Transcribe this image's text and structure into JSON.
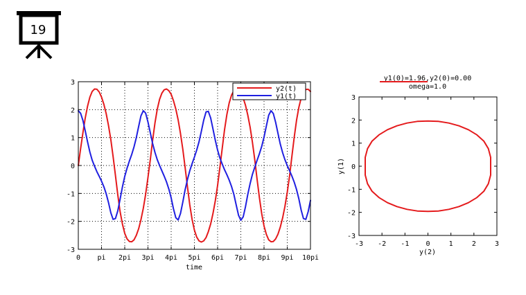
{
  "slide": {
    "number": "19",
    "icon": "presentation-board-icon"
  },
  "chart_data": [
    {
      "type": "line",
      "xlabel": "time",
      "ylabel": "",
      "xlim": [
        0,
        31.4159
      ],
      "ylim": [
        -3,
        3
      ],
      "x_ticks": [
        {
          "value": 0,
          "label": "0"
        },
        {
          "value": 3.14159,
          "label": "pi"
        },
        {
          "value": 6.28319,
          "label": "2pi"
        },
        {
          "value": 9.42478,
          "label": "3pi"
        },
        {
          "value": 12.56637,
          "label": "4pi"
        },
        {
          "value": 15.70796,
          "label": "5pi"
        },
        {
          "value": 18.84956,
          "label": "6pi"
        },
        {
          "value": 21.99115,
          "label": "7pi"
        },
        {
          "value": 25.13274,
          "label": "8pi"
        },
        {
          "value": 28.27433,
          "label": "9pi"
        },
        {
          "value": 31.41593,
          "label": "10pi"
        }
      ],
      "y_ticks": [
        -3,
        -2,
        -1,
        0,
        1,
        2,
        3
      ],
      "grid": true,
      "legend_position": "top-right",
      "series": [
        {
          "name": "y2(t)",
          "color": "#e41a1c",
          "x": [
            0.0,
            0.31,
            0.63,
            0.94,
            1.26,
            1.57,
            1.88,
            2.2,
            2.51,
            2.83,
            3.14,
            3.46,
            3.77,
            4.08,
            4.4,
            4.71,
            5.03,
            5.34,
            5.65,
            5.97,
            6.28,
            6.6,
            6.91,
            7.23,
            7.54,
            7.85,
            8.17,
            8.48,
            8.8,
            9.11,
            9.42,
            9.74,
            10.05,
            10.37,
            10.68,
            11.0,
            11.31,
            11.62,
            11.94,
            12.25,
            12.57,
            12.88,
            13.19,
            13.51,
            13.82,
            14.14,
            14.45,
            14.77,
            15.08,
            15.39,
            15.71,
            16.02,
            16.34,
            16.65,
            16.96,
            17.28,
            17.59,
            17.91,
            18.22,
            18.54,
            18.85,
            19.16,
            19.48,
            19.79,
            20.11,
            20.42,
            20.73,
            21.05,
            21.36,
            21.68,
            21.99,
            22.31,
            22.62,
            22.93,
            23.25,
            23.56,
            23.88,
            24.19,
            24.5,
            24.82,
            25.13,
            25.45,
            25.76,
            26.08,
            26.39,
            26.7,
            27.02,
            27.33,
            27.65,
            27.96,
            28.27,
            28.59,
            28.9,
            29.22,
            29.53,
            29.85,
            30.16,
            30.47,
            30.79,
            31.1,
            31.42
          ],
          "y": [
            0.0,
            0.6,
            1.18,
            1.7,
            2.13,
            2.45,
            2.65,
            2.74,
            2.73,
            2.63,
            2.45,
            2.19,
            1.86,
            1.44,
            0.93,
            0.32,
            -0.36,
            -1.04,
            -1.64,
            -2.1,
            -2.43,
            -2.63,
            -2.72,
            -2.73,
            -2.66,
            -2.5,
            -2.26,
            -1.94,
            -1.53,
            -1.04,
            -0.45,
            0.21,
            0.9,
            1.52,
            2.01,
            2.37,
            2.59,
            2.71,
            2.74,
            2.68,
            2.55,
            2.32,
            2.02,
            1.63,
            1.15,
            0.58,
            -0.07,
            -0.76,
            -1.4,
            -1.92,
            -2.31,
            -2.56,
            -2.7,
            -2.74,
            -2.7,
            -2.58,
            -2.37,
            -2.09,
            -1.72,
            -1.26,
            -0.71,
            -0.07,
            0.62,
            1.28,
            1.83,
            2.24,
            2.52,
            2.68,
            2.74,
            2.71,
            2.61,
            2.42,
            2.16,
            1.81,
            1.37,
            0.84,
            0.21,
            -0.48,
            -1.15,
            -1.73,
            -2.17,
            -2.47,
            -2.66,
            -2.73,
            -2.72,
            -2.63,
            -2.46,
            -2.21,
            -1.88,
            -1.47,
            -0.96,
            -0.36,
            0.33,
            1.02,
            1.62,
            2.09,
            2.42,
            2.63,
            2.72,
            2.73,
            2.65
          ]
        },
        {
          "name": "y1(t)",
          "color": "#1f1fe0",
          "x": [
            0.0,
            0.31,
            0.63,
            0.94,
            1.26,
            1.57,
            1.88,
            2.2,
            2.51,
            2.83,
            3.14,
            3.46,
            3.77,
            4.08,
            4.4,
            4.71,
            5.03,
            5.34,
            5.65,
            5.97,
            6.28,
            6.6,
            6.91,
            7.23,
            7.54,
            7.85,
            8.17,
            8.48,
            8.8,
            9.11,
            9.42,
            9.74,
            10.05,
            10.37,
            10.68,
            11.0,
            11.31,
            11.62,
            11.94,
            12.25,
            12.57,
            12.88,
            13.19,
            13.51,
            13.82,
            14.14,
            14.45,
            14.77,
            15.08,
            15.39,
            15.71,
            16.02,
            16.34,
            16.65,
            16.96,
            17.28,
            17.59,
            17.91,
            18.22,
            18.54,
            18.85,
            19.16,
            19.48,
            19.79,
            20.11,
            20.42,
            20.73,
            21.05,
            21.36,
            21.68,
            21.99,
            22.31,
            22.62,
            22.93,
            23.25,
            23.56,
            23.88,
            24.19,
            24.5,
            24.82,
            25.13,
            25.45,
            25.76,
            26.08,
            26.39,
            26.7,
            27.02,
            27.33,
            27.65,
            27.96,
            28.27,
            28.59,
            28.9,
            29.22,
            29.53,
            29.85,
            30.16,
            30.47,
            30.79,
            31.1,
            31.42
          ],
          "y": [
            1.96,
            1.87,
            1.61,
            1.24,
            0.84,
            0.48,
            0.19,
            -0.03,
            -0.22,
            -0.39,
            -0.56,
            -0.76,
            -1.01,
            -1.32,
            -1.69,
            -1.93,
            -1.9,
            -1.63,
            -1.22,
            -0.76,
            -0.39,
            -0.09,
            0.16,
            0.4,
            0.67,
            1.0,
            1.4,
            1.78,
            1.96,
            1.88,
            1.57,
            1.17,
            0.79,
            0.47,
            0.21,
            0.0,
            -0.19,
            -0.38,
            -0.59,
            -0.84,
            -1.16,
            -1.55,
            -1.87,
            -1.95,
            -1.72,
            -1.31,
            -0.87,
            -0.5,
            -0.19,
            0.06,
            0.3,
            0.55,
            0.85,
            1.22,
            1.62,
            1.92,
            1.94,
            1.7,
            1.31,
            0.9,
            0.55,
            0.27,
            0.05,
            -0.15,
            -0.33,
            -0.52,
            -0.75,
            -1.04,
            -1.41,
            -1.78,
            -1.96,
            -1.84,
            -1.48,
            -1.04,
            -0.65,
            -0.32,
            -0.06,
            0.18,
            0.42,
            0.69,
            1.02,
            1.42,
            1.8,
            1.96,
            1.86,
            1.55,
            1.15,
            0.77,
            0.46,
            0.21,
            0.0,
            -0.19,
            -0.38,
            -0.6,
            -0.86,
            -1.2,
            -1.6,
            -1.9,
            -1.93,
            -1.66,
            -1.25
          ]
        }
      ]
    },
    {
      "type": "line",
      "title": "y1(0)=1.96,y2(0)=0.00",
      "subtitle": "omega=1.0",
      "xlabel": "y(2)",
      "ylabel": "y(1)",
      "xlim": [
        -3,
        3
      ],
      "ylim": [
        -3,
        3
      ],
      "x_ticks": [
        -3,
        -2,
        -1,
        0,
        1,
        2,
        3
      ],
      "y_ticks": [
        -3,
        -2,
        -1,
        0,
        1,
        2,
        3
      ],
      "grid": false,
      "series": [
        {
          "color": "#e41a1c",
          "x": [
            0.0,
            0.46,
            0.91,
            1.35,
            1.76,
            2.13,
            2.43,
            2.63,
            2.73,
            2.73,
            2.63,
            2.43,
            2.13,
            1.76,
            1.35,
            0.91,
            0.46,
            0.0,
            -0.46,
            -0.91,
            -1.35,
            -1.76,
            -2.13,
            -2.43,
            -2.63,
            -2.73,
            -2.73,
            -2.63,
            -2.43,
            -2.13,
            -1.76,
            -1.35,
            -0.91,
            -0.46,
            0.0
          ],
          "y": [
            1.96,
            1.94,
            1.87,
            1.75,
            1.58,
            1.36,
            1.09,
            0.76,
            0.38,
            -0.38,
            -0.76,
            -1.09,
            -1.36,
            -1.58,
            -1.75,
            -1.87,
            -1.94,
            -1.96,
            -1.94,
            -1.87,
            -1.75,
            -1.58,
            -1.36,
            -1.09,
            -0.76,
            -0.38,
            0.38,
            0.76,
            1.09,
            1.36,
            1.58,
            1.75,
            1.87,
            1.94,
            1.96
          ]
        }
      ]
    }
  ]
}
